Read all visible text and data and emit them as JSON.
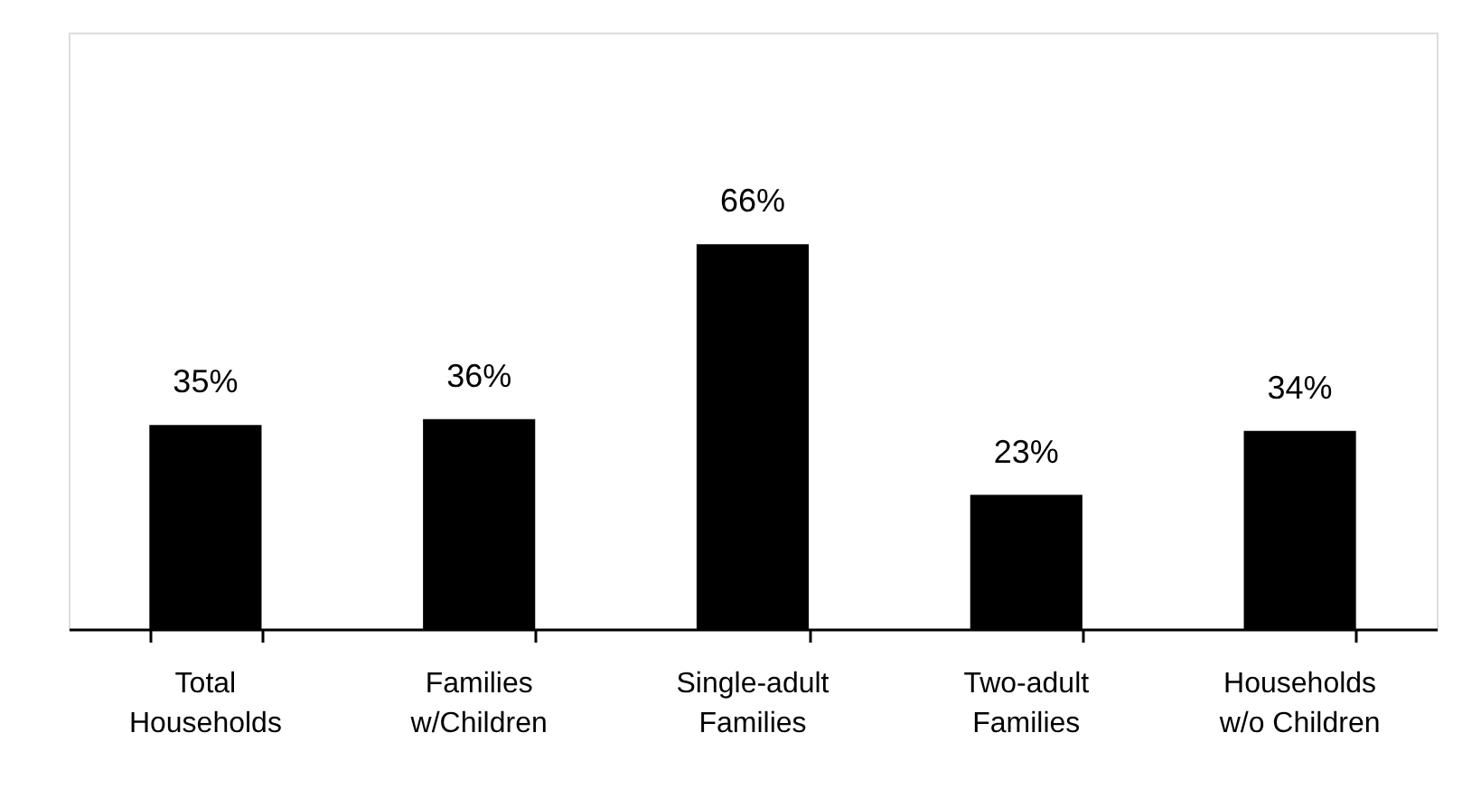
{
  "chart_data": {
    "type": "bar",
    "categories": [
      "Total\nHouseholds",
      "Families\nw/Children",
      "Single-adult\nFamilies",
      "Two-adult\nFamilies",
      "Households\nw/o Children"
    ],
    "values": [
      35,
      36,
      66,
      23,
      34
    ],
    "value_labels": [
      "35%",
      "36%",
      "66%",
      "23%",
      "34%"
    ],
    "color": "#000000"
  }
}
